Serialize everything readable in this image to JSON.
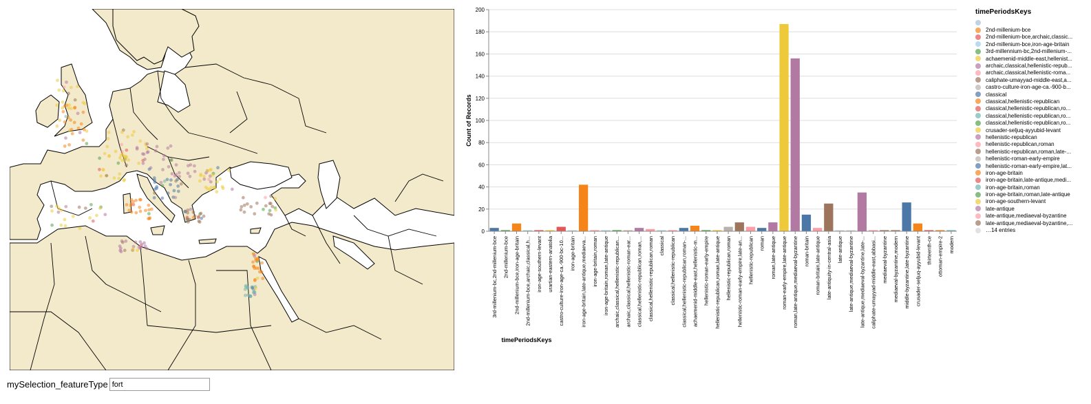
{
  "controls": {
    "selection_label": "mySelection_featureType",
    "selection_value": "fort"
  },
  "colors": {
    "land": "#f3eacb",
    "water": "#ffffff",
    "border": "#000000"
  },
  "chart_data": {
    "type": "bar",
    "xlabel": "timePeriodsKeys",
    "ylabel": "Count of Records",
    "ylim": [
      0,
      200
    ],
    "yticks": [
      0,
      20,
      40,
      60,
      80,
      100,
      120,
      140,
      160,
      180,
      200
    ],
    "grid": true,
    "legend_position": "right",
    "categories": [
      "3rd-millenium-bc,2nd-millenium-bce",
      "2nd-millenium-bce",
      "2nd-millenium-bce,iron-age-britain",
      "2nd-millenium-bce,archaic,classical,h...",
      "iron-age-southern-levant",
      "urartian-eastern-anatolia",
      "castro-culture-iron-age-ca.-900-bc-10...",
      "iron-age-britain",
      "iron-age-britain,late-antique,mediaeva...",
      "iron-age-britain,roman",
      "iron-age-britain,roman,late-antique",
      "archaic,classical,hellenistic-republican...",
      "archaic,classical,hellenistic-roman-ear...",
      "classical,hellenistic-republican,roman,...",
      "classical,hellenistic-republican,roman",
      "classical",
      "classical,hellenistic-republican",
      "classical,hellenistic-republican,roman-...",
      "achaemenid-middle-east,hellenistic-m...",
      "hellenistic-roman-early-empire",
      "hellenistic-republican,roman,late-antique",
      "hellenistic-republican,roman",
      "hellenistic-roman-early-empire,late-an...",
      "hellenistic-republican",
      "roman",
      "roman,late-antique",
      "roman-early-empire,late-antique",
      "roman,late-antique,mediaeval-byzantine",
      "roman-britain",
      "roman-britain,late-antique",
      "late-antiquity-in-central-asia",
      "late-antique",
      "late-antique,mediaeval-byzantine",
      "late-antique,mediaeval-byzantine,late-...",
      "caliphate-umayyad-middle-east,abbasi...",
      "mediaeval-byzantine",
      "mediaeval-byzantine,modern",
      "middle-byzantine,late-byzantine",
      "crusader-seljuq-ayyubid-levant",
      "thirteenth-ce",
      "ottoman-empire-2",
      "modern"
    ],
    "values": [
      3,
      1,
      7,
      1,
      1,
      1,
      4,
      1,
      42,
      1,
      1,
      1,
      1,
      3,
      2,
      1,
      1,
      3,
      5,
      1,
      1,
      4,
      8,
      4,
      3,
      8,
      187,
      156,
      15,
      3,
      25,
      1,
      1,
      35,
      1,
      1,
      1,
      26,
      7,
      1,
      1,
      1
    ],
    "bar_colors": [
      "#4c78a8",
      "#54a24b",
      "#f58518",
      "#b6d7d1",
      "#e45756",
      "#eeca3b",
      "#e45756",
      "#d6d6d6",
      "#f58518",
      "#ff9da6",
      "#b6d7d1",
      "#54a24b",
      "#ccbfa7",
      "#b279a2",
      "#ff9da6",
      "#b6d7d1",
      "#ff9da6",
      "#4c78a8",
      "#f58518",
      "#54a24b",
      "#eeca3b",
      "#bab0ac",
      "#9d755d",
      "#ff9da6",
      "#4c78a8",
      "#b279a2",
      "#eeca3b",
      "#b279a2",
      "#4c78a8",
      "#ff9da6",
      "#9d755d",
      "#d6d6d6",
      "#d6d6d6",
      "#b279a2",
      "#ff9da6",
      "#9d755d",
      "#9d755d",
      "#4c78a8",
      "#f58518",
      "#e45756",
      "#f58518",
      "#72b7b2"
    ],
    "legend": {
      "title": "timePeriodsKeys",
      "entries": [
        {
          "label": "",
          "color": "#a7bfd8"
        },
        {
          "label": "2nd-millenium-bce",
          "color": "#f58518"
        },
        {
          "label": "2nd-millenium-bce,archaic,classic...",
          "color": "#e45756"
        },
        {
          "label": "2nd-millenium-bce,iron-age-britain",
          "color": "#9ecae9"
        },
        {
          "label": "3rd-millennium-bc,2nd-millenium-...",
          "color": "#54a24b"
        },
        {
          "label": "achaemenid-middle-east,hellenist...",
          "color": "#eeca3b"
        },
        {
          "label": "archaic,classical,hellenistic-repub...",
          "color": "#b279a2"
        },
        {
          "label": "archaic,classical,hellenistic-roma...",
          "color": "#ff9da6"
        },
        {
          "label": "caliphate-umayyad-middle-east,a...",
          "color": "#9d755d"
        },
        {
          "label": "castro-culture-iron-age-ca.-900-b...",
          "color": "#bab0ac"
        },
        {
          "label": "classical",
          "color": "#4c78a8"
        },
        {
          "label": "classical,hellenistic-republican",
          "color": "#f58518"
        },
        {
          "label": "classical,hellenistic-republican,ro...",
          "color": "#e45756"
        },
        {
          "label": "classical,hellenistic-republican,ro...",
          "color": "#72b7b2"
        },
        {
          "label": "classical,hellenistic-republican,ro...",
          "color": "#54a24b"
        },
        {
          "label": "crusader-seljuq-ayyubid-levant",
          "color": "#eeca3b"
        },
        {
          "label": "hellenistic-republican",
          "color": "#b279a2"
        },
        {
          "label": "hellenistic-republican,roman",
          "color": "#ff9da6"
        },
        {
          "label": "hellenistic-republican,roman,late-...",
          "color": "#9d755d"
        },
        {
          "label": "hellenistic-roman-early-empire",
          "color": "#bab0ac"
        },
        {
          "label": "hellenistic-roman-early-empire,lat...",
          "color": "#4c78a8"
        },
        {
          "label": "iron-age-britain",
          "color": "#f58518"
        },
        {
          "label": "iron-age-britain,late-antique,medi...",
          "color": "#e45756"
        },
        {
          "label": "iron-age-britain,roman",
          "color": "#72b7b2"
        },
        {
          "label": "iron-age-britain,roman,late-antique",
          "color": "#54a24b"
        },
        {
          "label": "iron-age-southern-levant",
          "color": "#eeca3b"
        },
        {
          "label": "late-antique",
          "color": "#b279a2"
        },
        {
          "label": "late-antique,mediaeval-byzantine",
          "color": "#ff9da6"
        },
        {
          "label": "late-antique,mediaeval-byzantine,...",
          "color": "#9d755d"
        },
        {
          "label": "…14 entries",
          "color": "#d6d6d6"
        }
      ]
    }
  }
}
